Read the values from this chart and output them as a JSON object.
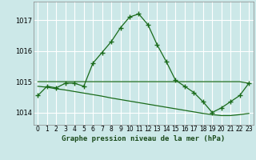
{
  "title": "Graphe pression niveau de la mer (hPa)",
  "background_color": "#cce8e8",
  "grid_color": "#ffffff",
  "line_color": "#1a6b1a",
  "xlim": [
    -0.5,
    23.5
  ],
  "ylim": [
    1013.6,
    1017.6
  ],
  "yticks": [
    1014,
    1015,
    1016,
    1017
  ],
  "xticks": [
    0,
    1,
    2,
    3,
    4,
    5,
    6,
    7,
    8,
    9,
    10,
    11,
    12,
    13,
    14,
    15,
    16,
    17,
    18,
    19,
    20,
    21,
    22,
    23
  ],
  "series1_x": [
    0,
    1,
    2,
    3,
    4,
    5,
    6,
    7,
    8,
    9,
    10,
    11,
    12,
    13,
    14,
    15,
    16,
    17,
    18,
    19,
    20,
    21,
    22,
    23
  ],
  "series1_y": [
    1014.55,
    1014.85,
    1014.8,
    1014.95,
    1014.95,
    1014.85,
    1015.6,
    1015.95,
    1016.3,
    1016.75,
    1017.1,
    1017.2,
    1016.85,
    1016.2,
    1015.65,
    1015.05,
    1014.85,
    1014.65,
    1014.35,
    1014.0,
    1014.15,
    1014.35,
    1014.55,
    1014.95
  ],
  "series2_x": [
    0,
    1,
    2,
    3,
    4,
    5,
    6,
    7,
    8,
    9,
    10,
    11,
    12,
    13,
    14,
    15,
    16,
    17,
    18,
    19,
    20,
    21,
    22,
    23
  ],
  "series2_y": [
    1015.0,
    1015.0,
    1015.0,
    1015.0,
    1015.0,
    1015.0,
    1015.0,
    1015.0,
    1015.0,
    1015.0,
    1015.0,
    1015.0,
    1015.0,
    1015.0,
    1015.0,
    1015.0,
    1015.0,
    1015.0,
    1015.0,
    1015.0,
    1015.0,
    1015.0,
    1015.0,
    1014.95
  ],
  "series3_x": [
    0,
    1,
    2,
    3,
    4,
    5,
    6,
    7,
    8,
    9,
    10,
    11,
    12,
    13,
    14,
    15,
    16,
    17,
    18,
    19,
    20,
    21,
    22,
    23
  ],
  "series3_y": [
    1014.85,
    1014.82,
    1014.77,
    1014.73,
    1014.68,
    1014.63,
    1014.58,
    1014.53,
    1014.47,
    1014.42,
    1014.37,
    1014.32,
    1014.27,
    1014.22,
    1014.17,
    1014.12,
    1014.07,
    1014.02,
    1013.97,
    1013.93,
    1013.9,
    1013.9,
    1013.93,
    1013.97
  ]
}
